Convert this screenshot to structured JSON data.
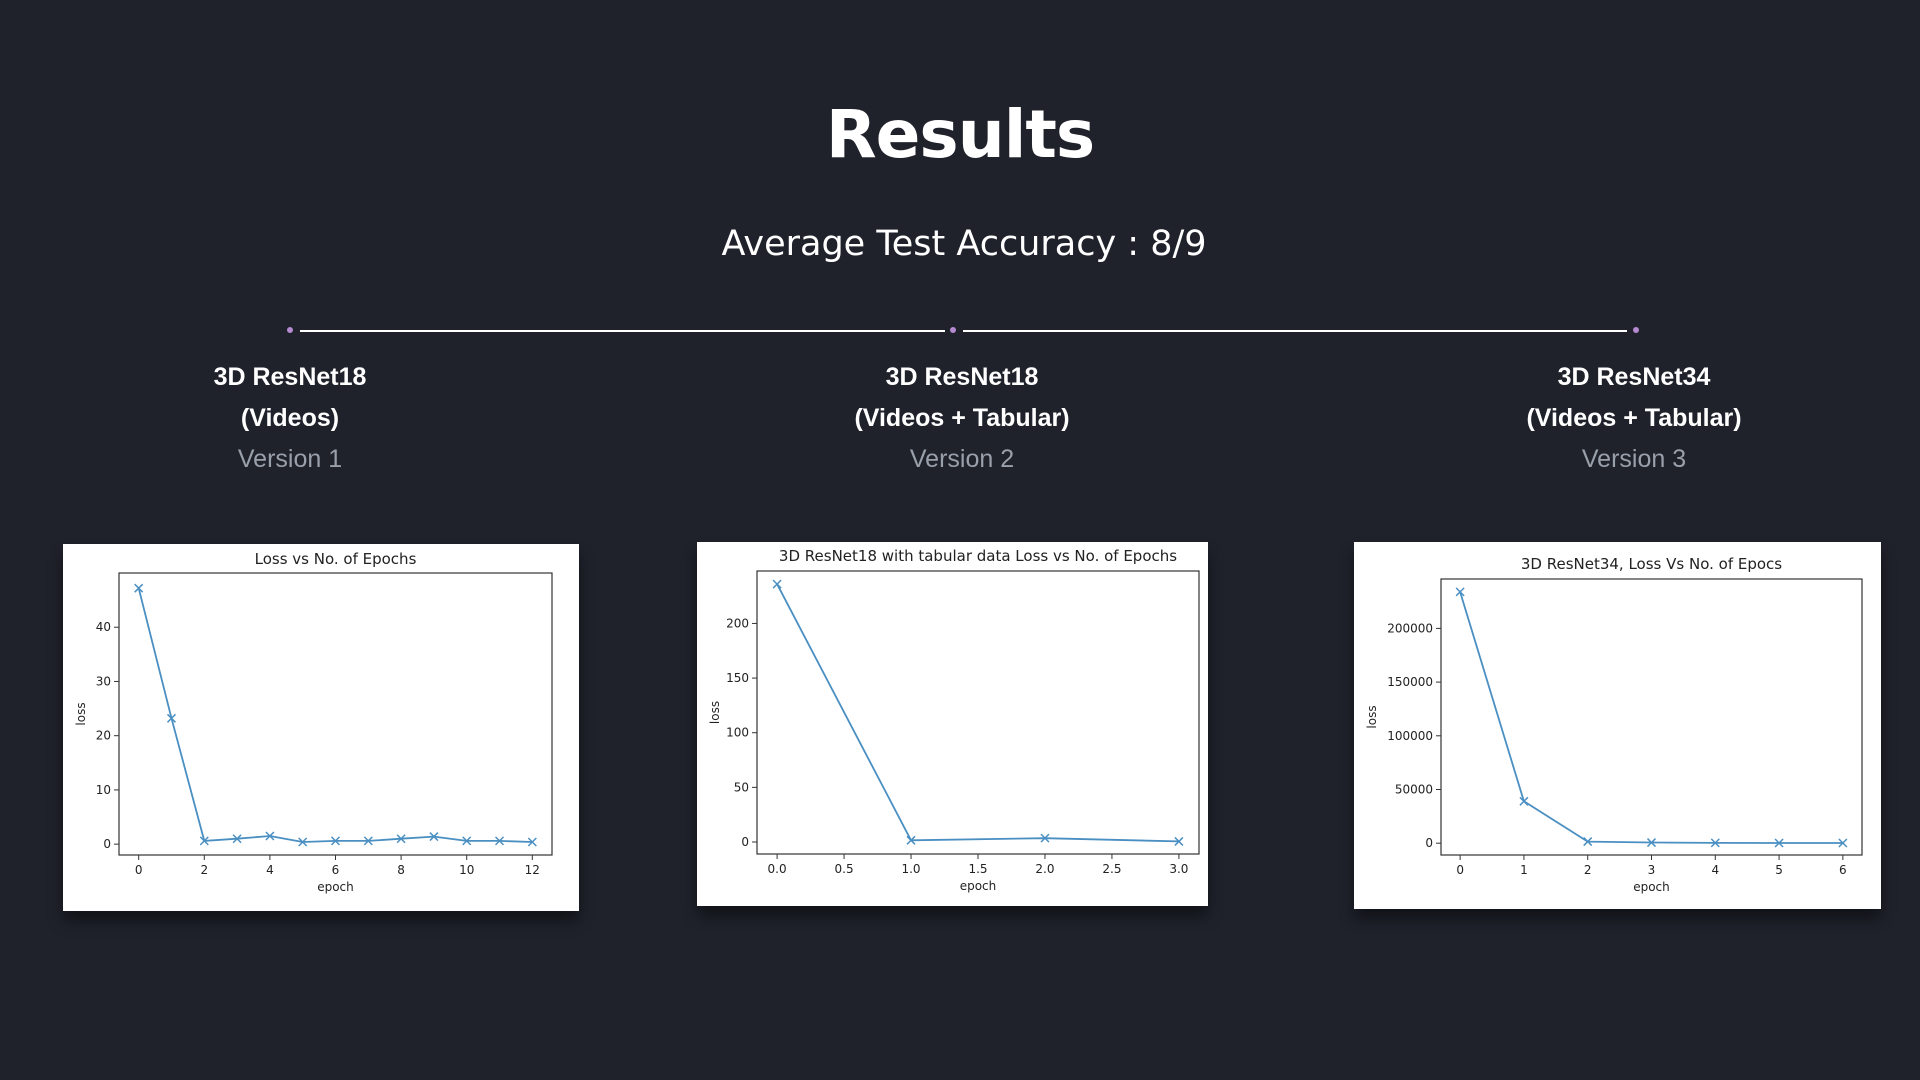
{
  "header": {
    "title": "Results",
    "subtitle": "Average Test Accuracy : 8/9"
  },
  "colors": {
    "background": "#1f222b",
    "timeline_line": "#ffffff",
    "timeline_dot": "#b58ad1",
    "version_text": "#9aa0ab",
    "series": "#4a8fc2"
  },
  "models": [
    {
      "name_line1": "3D ResNet18",
      "name_line2": "(Videos)",
      "version": "Version 1"
    },
    {
      "name_line1": "3D ResNet18",
      "name_line2": "(Videos + Tabular)",
      "version": "Version 2"
    },
    {
      "name_line1": "3D ResNet34",
      "name_line2": "(Videos + Tabular)",
      "version": "Version 3"
    }
  ],
  "chart_data": [
    {
      "type": "line",
      "title": "Loss vs No. of Epochs",
      "xlabel": "epoch",
      "ylabel": "loss",
      "x": [
        0,
        1,
        2,
        3,
        4,
        5,
        6,
        7,
        8,
        9,
        10,
        11,
        12
      ],
      "y": [
        47.2,
        23.2,
        0.6,
        1.0,
        1.5,
        0.4,
        0.6,
        0.6,
        1.0,
        1.4,
        0.6,
        0.6,
        0.4
      ],
      "xlim": [
        -0.6,
        12.6
      ],
      "ylim": [
        -2,
        50
      ],
      "xticks": [
        0,
        2,
        4,
        6,
        8,
        10,
        12
      ],
      "yticks": [
        0,
        10,
        20,
        30,
        40
      ],
      "xtick_labels": [
        "0",
        "2",
        "4",
        "6",
        "8",
        "10",
        "12"
      ],
      "ytick_labels": [
        "0",
        "10",
        "20",
        "30",
        "40"
      ],
      "marker": "x",
      "grid": false
    },
    {
      "type": "line",
      "title": "3D ResNet18 with tabular data Loss vs No. of Epochs",
      "xlabel": "epoch",
      "ylabel": "loss",
      "x": [
        0,
        1,
        2,
        3
      ],
      "y": [
        236,
        1.5,
        3.5,
        0.5
      ],
      "xlim": [
        -0.15,
        3.15
      ],
      "ylim": [
        -11,
        248
      ],
      "xticks": [
        0,
        0.5,
        1,
        1.5,
        2,
        2.5,
        3
      ],
      "yticks": [
        0,
        50,
        100,
        150,
        200
      ],
      "xtick_labels": [
        "0.0",
        "0.5",
        "1.0",
        "1.5",
        "2.0",
        "2.5",
        "3.0"
      ],
      "ytick_labels": [
        "0",
        "50",
        "100",
        "150",
        "200"
      ],
      "marker": "x",
      "grid": false
    },
    {
      "type": "line",
      "title": "3D ResNet34, Loss Vs No. of Epocs",
      "xlabel": "epoch",
      "ylabel": "loss",
      "x": [
        0,
        1,
        2,
        3,
        4,
        5,
        6
      ],
      "y": [
        234000,
        39000,
        1500,
        600,
        300,
        200,
        150
      ],
      "xlim": [
        -0.3,
        6.3
      ],
      "ylim": [
        -11000,
        246000
      ],
      "xticks": [
        0,
        1,
        2,
        3,
        4,
        5,
        6
      ],
      "yticks": [
        0,
        50000,
        100000,
        150000,
        200000
      ],
      "xtick_labels": [
        "0",
        "1",
        "2",
        "3",
        "4",
        "5",
        "6"
      ],
      "ytick_labels": [
        "0",
        "50000",
        "100000",
        "150000",
        "200000"
      ],
      "marker": "x",
      "grid": false
    }
  ]
}
